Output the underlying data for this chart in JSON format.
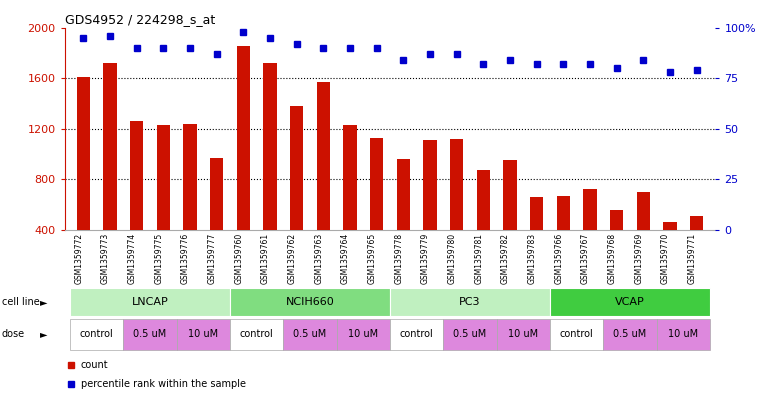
{
  "title": "GDS4952 / 224298_s_at",
  "samples": [
    "GSM1359772",
    "GSM1359773",
    "GSM1359774",
    "GSM1359775",
    "GSM1359776",
    "GSM1359777",
    "GSM1359760",
    "GSM1359761",
    "GSM1359762",
    "GSM1359763",
    "GSM1359764",
    "GSM1359765",
    "GSM1359778",
    "GSM1359779",
    "GSM1359780",
    "GSM1359781",
    "GSM1359782",
    "GSM1359783",
    "GSM1359766",
    "GSM1359767",
    "GSM1359768",
    "GSM1359769",
    "GSM1359770",
    "GSM1359771"
  ],
  "counts": [
    1610,
    1720,
    1260,
    1230,
    1240,
    970,
    1850,
    1720,
    1380,
    1570,
    1230,
    1130,
    960,
    1110,
    1120,
    870,
    950,
    660,
    670,
    720,
    560,
    700,
    460,
    510
  ],
  "percentiles": [
    95,
    96,
    90,
    90,
    90,
    87,
    98,
    95,
    92,
    90,
    90,
    90,
    84,
    87,
    87,
    82,
    84,
    82,
    82,
    82,
    80,
    84,
    78,
    79
  ],
  "cell_lines": [
    {
      "label": "LNCAP",
      "start": 0,
      "end": 6,
      "color": "#c0f0c0"
    },
    {
      "label": "NCIH660",
      "start": 6,
      "end": 12,
      "color": "#80dd80"
    },
    {
      "label": "PC3",
      "start": 12,
      "end": 18,
      "color": "#c0f0c0"
    },
    {
      "label": "VCAP",
      "start": 18,
      "end": 24,
      "color": "#40cc40"
    }
  ],
  "dose_groups": [
    {
      "label": "control",
      "start": 0,
      "end": 2,
      "color": "#ffffff"
    },
    {
      "label": "0.5 uM",
      "start": 2,
      "end": 4,
      "color": "#dd88dd"
    },
    {
      "label": "10 uM",
      "start": 4,
      "end": 6,
      "color": "#dd88dd"
    },
    {
      "label": "control",
      "start": 6,
      "end": 8,
      "color": "#ffffff"
    },
    {
      "label": "0.5 uM",
      "start": 8,
      "end": 10,
      "color": "#dd88dd"
    },
    {
      "label": "10 uM",
      "start": 10,
      "end": 12,
      "color": "#dd88dd"
    },
    {
      "label": "control",
      "start": 12,
      "end": 14,
      "color": "#ffffff"
    },
    {
      "label": "0.5 uM",
      "start": 14,
      "end": 16,
      "color": "#dd88dd"
    },
    {
      "label": "10 uM",
      "start": 16,
      "end": 18,
      "color": "#dd88dd"
    },
    {
      "label": "control",
      "start": 18,
      "end": 20,
      "color": "#ffffff"
    },
    {
      "label": "0.5 uM",
      "start": 20,
      "end": 22,
      "color": "#dd88dd"
    },
    {
      "label": "10 uM",
      "start": 22,
      "end": 24,
      "color": "#dd88dd"
    }
  ],
  "bar_color": "#cc1100",
  "dot_color": "#0000cc",
  "ylim_left": [
    400,
    2000
  ],
  "ylim_right": [
    0,
    100
  ],
  "yticks_left": [
    400,
    800,
    1200,
    1600,
    2000
  ],
  "yticks_right": [
    0,
    25,
    50,
    75,
    100
  ],
  "grid_values": [
    800,
    1200,
    1600
  ],
  "background_color": "#ffffff",
  "left_tick_color": "#cc1100",
  "right_tick_color": "#0000cc"
}
